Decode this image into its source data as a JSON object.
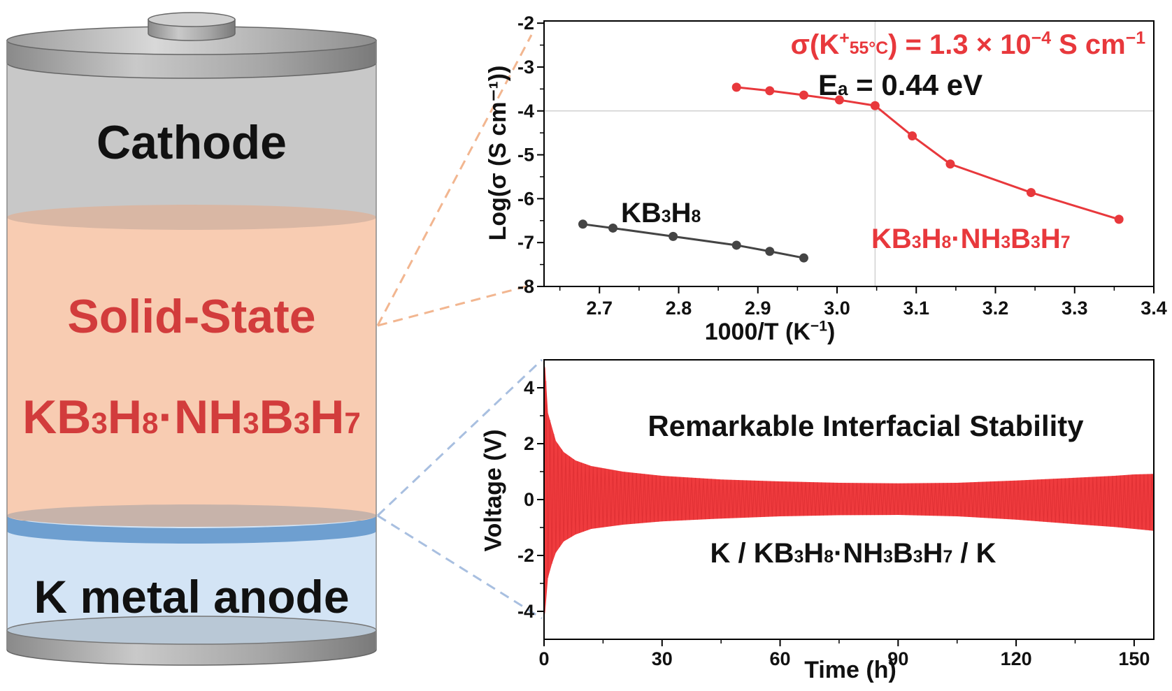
{
  "battery": {
    "cathode_label": "Cathode",
    "electrolyte_line1": "Solid-State",
    "electrolyte_formula": {
      "p1": "KB",
      "s1": "3",
      "p2": "H",
      "s2": "8",
      "p3": "·NH",
      "s3": "3",
      "p4": "B",
      "s4": "3",
      "p5": "H",
      "s5": "7"
    },
    "anode_label": "K metal anode",
    "colors": {
      "cathode": "#c8c8c8",
      "electrolyte": "#f8ccb2",
      "anode": "#d3e4f5",
      "interface": "#6e9fd0",
      "electrolyte_text": "#d23c3c"
    }
  },
  "chart_data": [
    {
      "type": "line",
      "xlabel": {
        "main": "1000/T (K",
        "sup": "−1",
        "end": ")"
      },
      "ylabel": "Log(σ (S cm⁻¹))",
      "xlim": [
        2.63,
        3.4
      ],
      "ylim": [
        -8,
        -1.95
      ],
      "xticks": [
        2.7,
        2.8,
        2.9,
        3.0,
        3.1,
        3.2,
        3.3,
        3.4
      ],
      "xtick_labels": [
        "2.7",
        "2.8",
        "2.9",
        "3.0",
        "3.1",
        "3.2",
        "3.3",
        "3.4"
      ],
      "yticks": [
        -8,
        -7,
        -6,
        -5,
        -4,
        -3,
        -2
      ],
      "ytick_labels": [
        "-8",
        "-7",
        "-6",
        "-5",
        "-4",
        "-3",
        "-2"
      ],
      "reference_lines": {
        "y": -4.0,
        "x": 3.048
      },
      "series": [
        {
          "name": "KB3H8",
          "color": "#444444",
          "x": [
            2.679,
            2.717,
            2.793,
            2.873,
            2.915,
            2.958
          ],
          "y": [
            -6.58,
            -6.67,
            -6.86,
            -7.06,
            -7.2,
            -7.35
          ]
        },
        {
          "name": "KB3H8·NH3B3H7",
          "color": "#e8383c",
          "x": [
            2.873,
            2.915,
            2.958,
            3.003,
            3.048,
            3.095,
            3.143,
            3.245,
            3.356
          ],
          "y": [
            -3.46,
            -3.54,
            -3.64,
            -3.75,
            -3.88,
            -4.57,
            -5.21,
            -5.86,
            -6.47
          ]
        }
      ],
      "series_labels": {
        "kb3h8": {
          "p1": "KB",
          "s1": "3",
          "p2": "H",
          "s2": "8"
        },
        "composite": {
          "p1": "KB",
          "s1": "3",
          "p2": "H",
          "s2": "8",
          "p3": "·NH",
          "s3": "3",
          "p4": "B",
          "s4": "3",
          "p5": "H",
          "s5": "7"
        }
      },
      "annotations": {
        "conductivity": {
          "a": "σ(K",
          "sup": "+",
          "sub": "55°C",
          "b": ") = 1.3 × 10",
          "exp": "−4",
          "c": " S cm",
          "exp2": "−1"
        },
        "activation": {
          "a": "E",
          "sub": "a",
          "b": " = 0.44 eV"
        }
      }
    },
    {
      "type": "area",
      "xlabel": "Time (h)",
      "ylabel": "Voltage (V)",
      "xlim": [
        0,
        155
      ],
      "ylim": [
        -5,
        5
      ],
      "xticks": [
        0,
        30,
        60,
        90,
        120,
        150
      ],
      "xtick_labels": [
        "0",
        "30",
        "60",
        "90",
        "120",
        "150"
      ],
      "yticks": [
        -4,
        -2,
        0,
        2,
        4
      ],
      "ytick_labels": [
        "-4",
        "-2",
        "0",
        "2",
        "4"
      ],
      "series": [
        {
          "name": "K/KB3H8·NH3B3H7/K",
          "color": "#ef3b3e",
          "time_h": [
            0,
            0.3,
            1,
            2,
            3,
            5,
            8,
            12,
            20,
            30,
            45,
            60,
            75,
            90,
            105,
            120,
            135,
            145,
            150,
            155
          ],
          "upper_v": [
            4.9,
            4.7,
            3.1,
            2.6,
            2.1,
            1.7,
            1.4,
            1.2,
            1.0,
            0.85,
            0.72,
            0.65,
            0.6,
            0.58,
            0.6,
            0.68,
            0.78,
            0.85,
            0.9,
            0.92
          ],
          "lower_v": [
            -4.3,
            -4.0,
            -2.8,
            -2.3,
            -1.9,
            -1.5,
            -1.25,
            -1.05,
            -0.9,
            -0.78,
            -0.68,
            -0.6,
            -0.56,
            -0.55,
            -0.6,
            -0.72,
            -0.88,
            -0.98,
            -1.05,
            -1.12
          ]
        }
      ],
      "title": "Remarkable Interfacial Stability",
      "cell_label": {
        "a": "K / KB",
        "s1": "3",
        "b": "H",
        "s2": "8",
        "c": "·NH",
        "s3": "3",
        "d": "B",
        "s4": "3",
        "e": "H",
        "s5": "7",
        "f": " / K"
      }
    }
  ]
}
